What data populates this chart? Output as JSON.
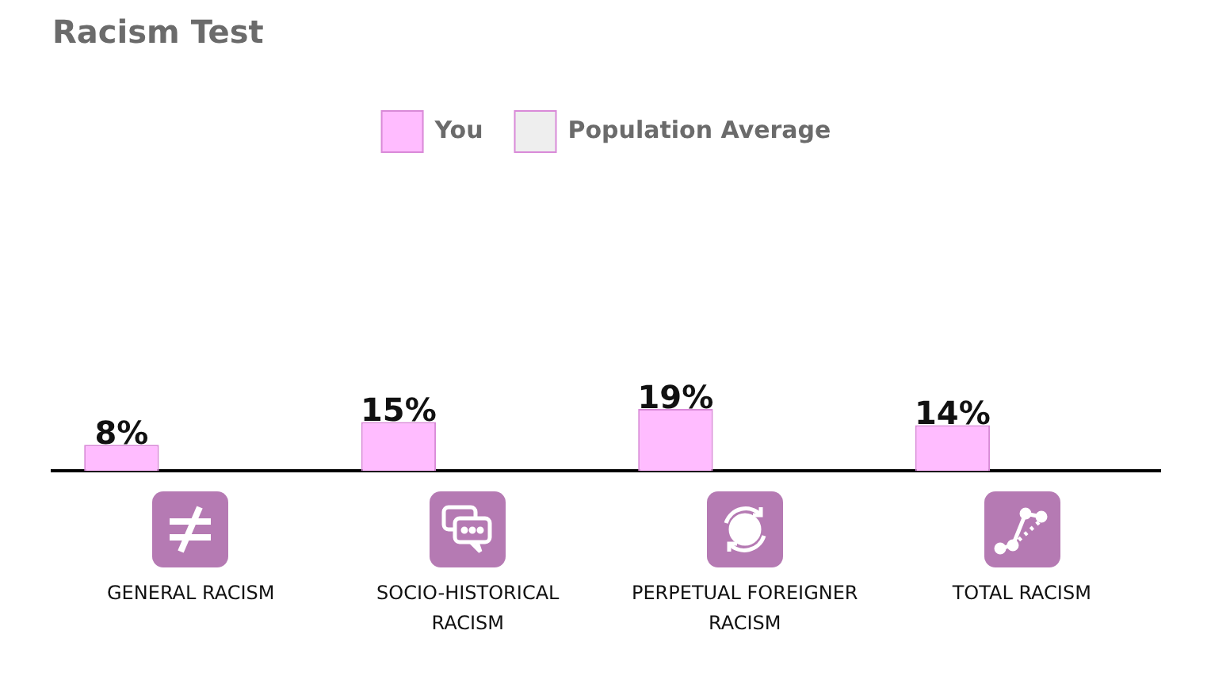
{
  "chart_data": {
    "type": "bar",
    "title": "Racism Test",
    "categories": [
      "GENERAL RACISM",
      "SOCIO-HISTORICAL RACISM",
      "PERPETUAL FOREIGNER RACISM",
      "TOTAL RACISM"
    ],
    "series": [
      {
        "name": "You",
        "color": "#ffbcff",
        "values": [
          8,
          15,
          19,
          14
        ],
        "value_labels": [
          "8%",
          "15%",
          "19%",
          "14%"
        ]
      },
      {
        "name": "Population Average",
        "color": "#eeeeee",
        "values": [
          null,
          null,
          null,
          null
        ]
      }
    ],
    "legend": "top",
    "grid": false,
    "tick_labels": "x"
  }
}
